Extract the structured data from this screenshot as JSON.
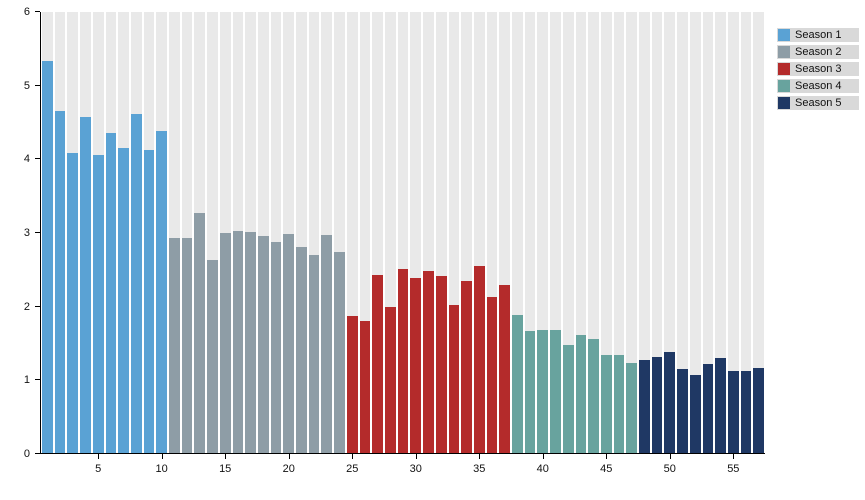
{
  "legend": {
    "items": [
      {
        "label": "Season 1",
        "color": "#5aa2d4"
      },
      {
        "label": "Season 2",
        "color": "#8e9da6"
      },
      {
        "label": "Season 3",
        "color": "#b42b2b"
      },
      {
        "label": "Season 4",
        "color": "#68a39e"
      },
      {
        "label": "Season 5",
        "color": "#1f3864"
      }
    ]
  },
  "chart_data": {
    "type": "bar",
    "title": "",
    "xlabel": "",
    "ylabel": "",
    "ylim": [
      0,
      6
    ],
    "y_ticks": [
      0,
      1,
      2,
      3,
      4,
      5,
      6
    ],
    "x_ticks": [
      5,
      10,
      15,
      20,
      25,
      30,
      35,
      40,
      45,
      50,
      55
    ],
    "x_unit": "episode",
    "grid": "none",
    "background_stripes": true,
    "legend_position": "top-right",
    "series": [
      {
        "name": "Season 1",
        "color": "#5aa2d4",
        "values": [
          5.33,
          4.66,
          4.08,
          4.57,
          4.05,
          4.35,
          4.15,
          4.61,
          4.12,
          4.38
        ]
      },
      {
        "name": "Season 2",
        "color": "#8e9da6",
        "values": [
          2.93,
          2.93,
          3.27,
          2.62,
          3.0,
          3.02,
          3.01,
          2.95,
          2.87,
          2.98,
          2.8,
          2.7,
          2.97,
          2.74
        ]
      },
      {
        "name": "Season 3",
        "color": "#b42b2b",
        "values": [
          1.87,
          1.8,
          2.42,
          1.98,
          2.51,
          2.38,
          2.47,
          2.41,
          2.02,
          2.34,
          2.55,
          2.12,
          2.28
        ]
      },
      {
        "name": "Season 4",
        "color": "#68a39e",
        "values": [
          1.88,
          1.66,
          1.68,
          1.67,
          1.47,
          1.61,
          1.55,
          1.33,
          1.34,
          1.23
        ]
      },
      {
        "name": "Season 5",
        "color": "#1f3864",
        "values": [
          1.27,
          1.31,
          1.38,
          1.14,
          1.06,
          1.21,
          1.29,
          1.12,
          1.12,
          1.15
        ]
      }
    ]
  }
}
